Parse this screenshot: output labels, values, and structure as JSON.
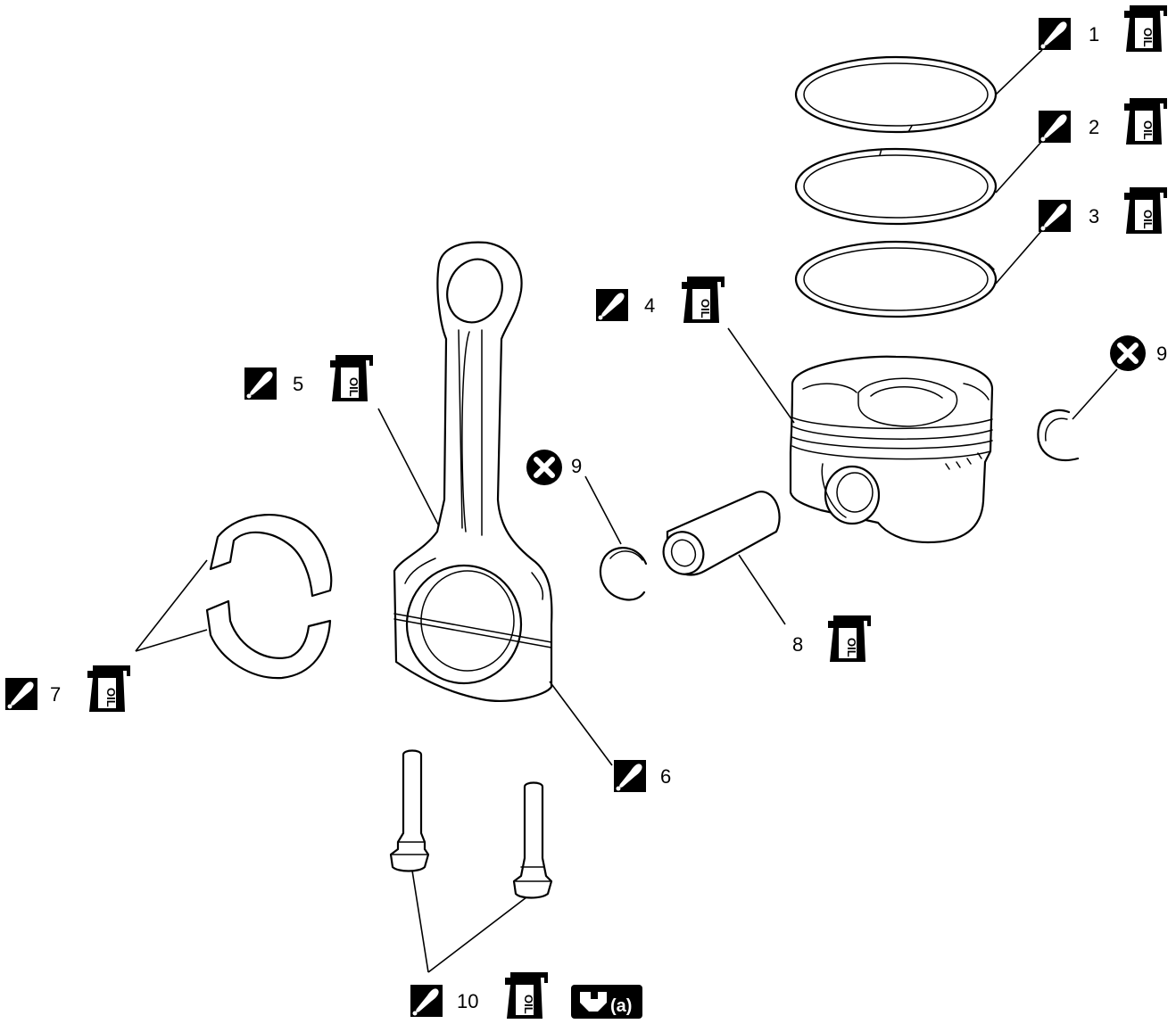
{
  "callouts": [
    {
      "number": "1"
    },
    {
      "number": "2"
    },
    {
      "number": "3"
    },
    {
      "number": "4"
    },
    {
      "number": "5"
    },
    {
      "number": "6"
    },
    {
      "number": "7"
    },
    {
      "number": "8"
    },
    {
      "number": "9"
    },
    {
      "number": "9"
    },
    {
      "number": "10"
    }
  ],
  "oil_label": "OIL",
  "torque_label": "(a)",
  "icons": {
    "lubricate": "oil-can-icon",
    "oil": "engine-oil-icon",
    "replace": "do-not-reuse-icon",
    "torque": "torque-wrench-icon"
  },
  "colors": {
    "ink": "#000000",
    "paper": "#ffffff"
  }
}
